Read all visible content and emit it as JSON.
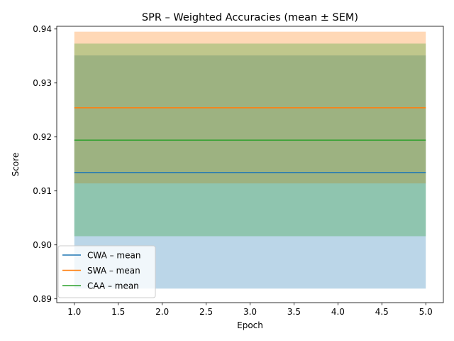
{
  "chart_data": {
    "type": "line",
    "title": "SPR – Weighted Accuracies (mean ± SEM)",
    "xlabel": "Epoch",
    "ylabel": "Score",
    "xlim": [
      0.8,
      5.2
    ],
    "ylim": [
      0.8893,
      0.9405
    ],
    "grid": false,
    "legend_position": "lower-left",
    "xticks": [
      1.0,
      1.5,
      2.0,
      2.5,
      3.0,
      3.5,
      4.0,
      4.5,
      5.0
    ],
    "xtick_labels": [
      "1.0",
      "1.5",
      "2.0",
      "2.5",
      "3.0",
      "3.5",
      "4.0",
      "4.5",
      "5.0"
    ],
    "yticks": [
      0.89,
      0.9,
      0.91,
      0.92,
      0.93,
      0.94
    ],
    "ytick_labels": [
      "0.89",
      "0.90",
      "0.91",
      "0.92",
      "0.93",
      "0.94"
    ],
    "x": [
      1,
      2,
      3,
      4,
      5
    ],
    "series": [
      {
        "name": "CWA – mean",
        "color": "#1f77b4",
        "values": [
          0.9134,
          0.9134,
          0.9134,
          0.9134,
          0.9134
        ],
        "lower": [
          0.8919,
          0.8919,
          0.8919,
          0.8919,
          0.8919
        ],
        "upper": [
          0.9351,
          0.9351,
          0.9351,
          0.9351,
          0.9351
        ]
      },
      {
        "name": "SWA – mean",
        "color": "#ff7f0e",
        "values": [
          0.9254,
          0.9254,
          0.9254,
          0.9254,
          0.9254
        ],
        "lower": [
          0.9114,
          0.9114,
          0.9114,
          0.9114,
          0.9114
        ],
        "upper": [
          0.9395,
          0.9395,
          0.9395,
          0.9395,
          0.9395
        ]
      },
      {
        "name": "CAA – mean",
        "color": "#2ca02c",
        "values": [
          0.9194,
          0.9194,
          0.9194,
          0.9194,
          0.9194
        ],
        "lower": [
          0.9016,
          0.9016,
          0.9016,
          0.9016,
          0.9016
        ],
        "upper": [
          0.9373,
          0.9373,
          0.9373,
          0.9373,
          0.9373
        ]
      }
    ]
  }
}
